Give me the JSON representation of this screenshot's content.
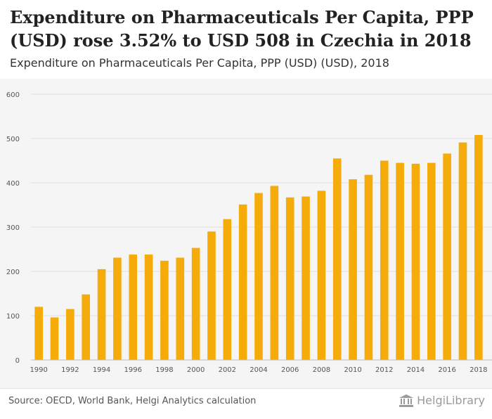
{
  "header": {
    "title": "Expenditure on Pharmaceuticals Per Capita, PPP (USD) rose 3.52% to USD 508 in Czechia in 2018",
    "subtitle": "Expenditure on Pharmaceuticals Per Capita, PPP (USD) (USD), 2018"
  },
  "footer": {
    "source": "Source: OECD, World Bank, Helgi Analytics calculation",
    "brand": "HelgiLibrary"
  },
  "colors": {
    "bar": "#f5ac0a",
    "grid": "#e0e0e0",
    "tick_text": "#555555",
    "plot_bg": "#f5f5f5"
  },
  "chart_data": {
    "type": "bar",
    "title": "Expenditure on Pharmaceuticals Per Capita, PPP (USD) rose 3.52% to USD 508 in Czechia in 2018",
    "subtitle": "Expenditure on Pharmaceuticals Per Capita, PPP (USD) (USD), 2018",
    "xlabel": "",
    "ylabel": "",
    "ylim": [
      0,
      600
    ],
    "yticks": [
      0,
      100,
      200,
      300,
      400,
      500,
      600
    ],
    "grid": true,
    "legend": "none",
    "categories": [
      "1990",
      "1991",
      "1992",
      "1993",
      "1994",
      "1995",
      "1996",
      "1997",
      "1998",
      "1999",
      "2000",
      "2001",
      "2002",
      "2003",
      "2004",
      "2005",
      "2006",
      "2007",
      "2008",
      "2009",
      "2010",
      "2011",
      "2012",
      "2013",
      "2014",
      "2015",
      "2016",
      "2017",
      "2018"
    ],
    "xtick_labels": [
      "1990",
      "1992",
      "1994",
      "1996",
      "1998",
      "2000",
      "2002",
      "2004",
      "2006",
      "2008",
      "2010",
      "2012",
      "2014",
      "2016",
      "2018"
    ],
    "values": [
      120,
      96,
      115,
      148,
      205,
      231,
      238,
      238,
      224,
      231,
      253,
      290,
      318,
      351,
      377,
      393,
      367,
      369,
      382,
      455,
      408,
      418,
      450,
      445,
      443,
      445,
      466,
      491,
      508
    ]
  }
}
